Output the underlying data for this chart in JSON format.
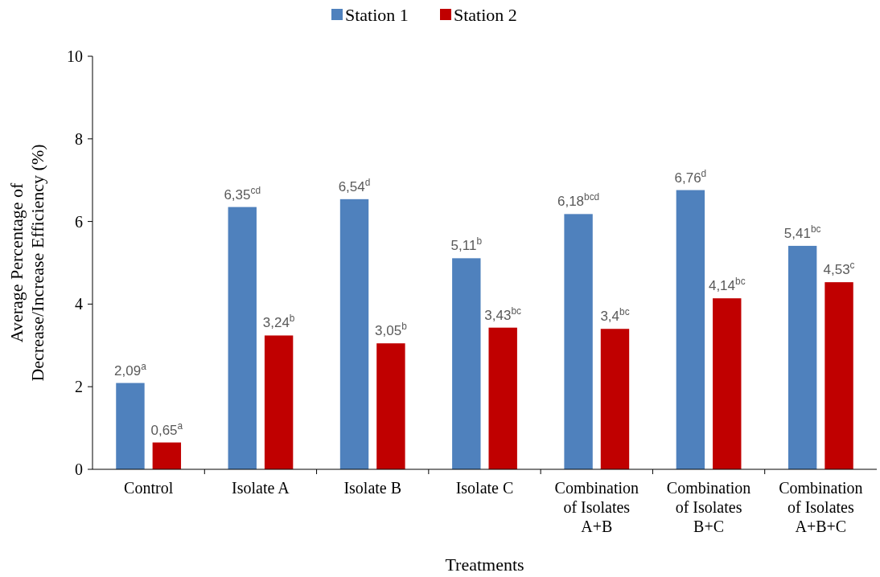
{
  "chart_data": {
    "type": "bar",
    "xlabel": "Treatments",
    "ylabel": "Average Percentage of Decrease/Increase Efficiency (%)",
    "categories": [
      "Control",
      "Isolate A",
      "Isolate B",
      "Isolate C",
      "Combination of Isolates A+B",
      "Combination of Isolates B+C",
      "Combination of Isolates A+B+C"
    ],
    "series": [
      {
        "name": "Station 1",
        "color": "#4f81bd",
        "values": [
          2.09,
          6.35,
          6.54,
          5.11,
          6.18,
          6.76,
          5.41
        ],
        "value_labels": [
          "2,09$^{a}$",
          "6,35$^{cd}$",
          "6,54$^{d}$",
          "5,11$^{b}$",
          "6,18$^{bcd}$",
          "6,76$^{d}$",
          "5,41$^{bc}$"
        ]
      },
      {
        "name": "Station 2",
        "color": "#c00000",
        "values": [
          0.65,
          3.24,
          3.05,
          3.43,
          3.4,
          4.14,
          4.53
        ],
        "value_labels": [
          "0,65$^{a}$",
          "3,24$^{b}$",
          "3,05$^{b}$",
          "3,43$^{bc}$",
          "3,4$^{bc}$",
          "4,14$^{bc}$",
          "4,53$^{c}$"
        ]
      }
    ],
    "ylim": [
      0,
      10
    ],
    "yticks": [
      0,
      2,
      4,
      6,
      8,
      10
    ],
    "grid": false,
    "legend": "top"
  }
}
